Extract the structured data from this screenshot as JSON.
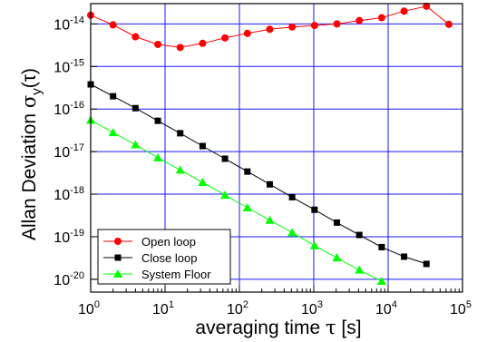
{
  "chart_data": {
    "type": "line",
    "xlabel_main": "averaging time ",
    "xlabel_greek": "τ",
    "xlabel_unit": " [s]",
    "ylabel_main": "Allan Deviation ",
    "ylabel_sigma": "σ",
    "ylabel_sub": "y",
    "ylabel_tau": "(τ)",
    "x_scale": "log",
    "y_scale": "log",
    "xlim": [
      1,
      100000
    ],
    "ylim": [
      5e-21,
      3e-14
    ],
    "grid": true,
    "legend_position": "bottom-left",
    "x_ticks": [
      {
        "base": "10",
        "exp": "0",
        "value": 1
      },
      {
        "base": "10",
        "exp": "1",
        "value": 10
      },
      {
        "base": "10",
        "exp": "2",
        "value": 100
      },
      {
        "base": "10",
        "exp": "3",
        "value": 1000
      },
      {
        "base": "10",
        "exp": "4",
        "value": 10000
      },
      {
        "base": "10",
        "exp": "5",
        "value": 100000
      }
    ],
    "y_ticks": [
      {
        "base": "10",
        "exp": "-14",
        "value": 1e-14
      },
      {
        "base": "10",
        "exp": "-15",
        "value": 1e-15
      },
      {
        "base": "10",
        "exp": "-16",
        "value": 1e-16
      },
      {
        "base": "10",
        "exp": "-17",
        "value": 1e-17
      },
      {
        "base": "10",
        "exp": "-18",
        "value": 1e-18
      },
      {
        "base": "10",
        "exp": "-19",
        "value": 1e-19
      },
      {
        "base": "10",
        "exp": "-20",
        "value": 1e-20
      }
    ],
    "series": [
      {
        "name": "Open loop",
        "color": "#ff0000",
        "marker": "circle",
        "points": [
          [
            1,
            1.6e-14
          ],
          [
            2,
            9.5e-15
          ],
          [
            4,
            5e-15
          ],
          [
            8,
            3.3e-15
          ],
          [
            16,
            2.8e-15
          ],
          [
            32,
            3.5e-15
          ],
          [
            64,
            4.7e-15
          ],
          [
            128,
            6e-15
          ],
          [
            256,
            7.5e-15
          ],
          [
            512,
            8.5e-15
          ],
          [
            1024,
            9.2e-15
          ],
          [
            2048,
            1e-14
          ],
          [
            4096,
            1.2e-14
          ],
          [
            8192,
            1.4e-14
          ],
          [
            16384,
            2e-14
          ],
          [
            32768,
            2.6e-14
          ],
          [
            65536,
            9.8e-15
          ]
        ]
      },
      {
        "name": "Close loop",
        "color": "#000000",
        "marker": "square",
        "points": [
          [
            1,
            3.8e-16
          ],
          [
            2,
            2e-16
          ],
          [
            4,
            1.05e-16
          ],
          [
            8,
            5.3e-17
          ],
          [
            16,
            2.7e-17
          ],
          [
            32,
            1.35e-17
          ],
          [
            64,
            6.8e-18
          ],
          [
            128,
            3.4e-18
          ],
          [
            256,
            1.7e-18
          ],
          [
            512,
            8.5e-19
          ],
          [
            1024,
            4.3e-19
          ],
          [
            2048,
            2.15e-19
          ],
          [
            4096,
            1.1e-19
          ],
          [
            8192,
            5.7e-20
          ],
          [
            16384,
            3.4e-20
          ],
          [
            32768,
            2.3e-20
          ]
        ]
      },
      {
        "name": "System Floor",
        "color": "#00ff00",
        "marker": "triangle",
        "points": [
          [
            1,
            5.5e-17
          ],
          [
            2,
            2.8e-17
          ],
          [
            4,
            1.45e-17
          ],
          [
            8,
            7.2e-18
          ],
          [
            16,
            3.7e-18
          ],
          [
            32,
            1.9e-18
          ],
          [
            64,
            9.5e-19
          ],
          [
            128,
            4.8e-19
          ],
          [
            256,
            2.45e-19
          ],
          [
            512,
            1.25e-19
          ],
          [
            1024,
            6.2e-20
          ],
          [
            2048,
            3.2e-20
          ],
          [
            4096,
            1.65e-20
          ],
          [
            8192,
            9e-21
          ]
        ]
      }
    ]
  }
}
